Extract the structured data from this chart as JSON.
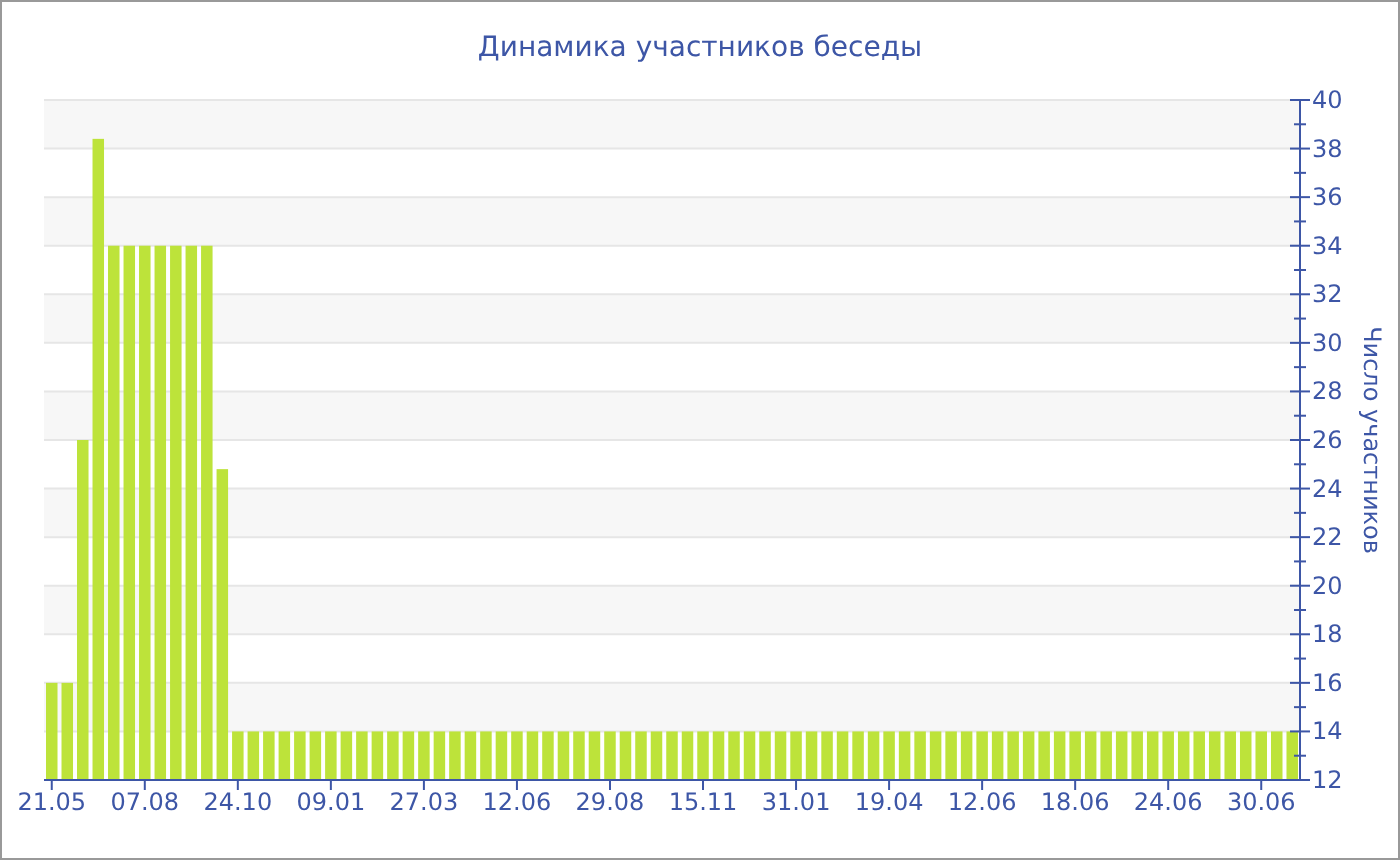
{
  "chart_data": {
    "type": "bar",
    "title": "Динамика участников беседы",
    "ylabel": "Число участников",
    "categories": [
      "21.05",
      null,
      null,
      null,
      null,
      null,
      "07.08",
      null,
      null,
      null,
      null,
      null,
      "24.10",
      null,
      null,
      null,
      null,
      null,
      "09.01",
      null,
      null,
      null,
      null,
      null,
      "27.03",
      null,
      null,
      null,
      null,
      null,
      "12.06",
      null,
      null,
      null,
      null,
      null,
      "29.08",
      null,
      null,
      null,
      null,
      null,
      "15.11",
      null,
      null,
      null,
      null,
      null,
      "31.01",
      null,
      null,
      null,
      null,
      null,
      "19.04",
      null,
      null,
      null,
      null,
      null,
      "12.06",
      null,
      null,
      null,
      null,
      null,
      "18.06",
      null,
      null,
      null,
      null,
      null,
      "24.06",
      null,
      null,
      null,
      null,
      null,
      "30.06",
      null,
      null
    ],
    "values": [
      16,
      16,
      26,
      38.4,
      34,
      34,
      34,
      34,
      34,
      34,
      34,
      24.8,
      14,
      14,
      14,
      14,
      14,
      14,
      14,
      14,
      14,
      14,
      14,
      14,
      14,
      14,
      14,
      14,
      14,
      14,
      14,
      14,
      14,
      14,
      14,
      14,
      14,
      14,
      14,
      14,
      14,
      14,
      14,
      14,
      14,
      14,
      14,
      14,
      14,
      14,
      14,
      14,
      14,
      14,
      14,
      14,
      14,
      14,
      14,
      14,
      14,
      14,
      14,
      14,
      14,
      14,
      14,
      14,
      14,
      14,
      14,
      14,
      14,
      14,
      14,
      14,
      14,
      14,
      14,
      14,
      14
    ],
    "color": "#bde33a",
    "ylim": [
      12,
      40
    ],
    "yticks": [
      12,
      {
        "value": 13,
        "label": null
      },
      14,
      {
        "value": 15,
        "label": null
      },
      16,
      {
        "value": 17,
        "label": null
      },
      18,
      {
        "value": 19,
        "label": null
      },
      20,
      {
        "value": 21,
        "label": null
      },
      22,
      {
        "value": 23,
        "label": null
      },
      24,
      {
        "value": 25,
        "label": null
      },
      26,
      {
        "value": 27,
        "label": null
      },
      28,
      {
        "value": 29,
        "label": null
      },
      30,
      {
        "value": 31,
        "label": null
      },
      32,
      {
        "value": 33,
        "label": null
      },
      34,
      {
        "value": 35,
        "label": null
      },
      36,
      {
        "value": 37,
        "label": null
      },
      38,
      {
        "value": 39,
        "label": null
      },
      40
    ],
    "grid": "y"
  }
}
